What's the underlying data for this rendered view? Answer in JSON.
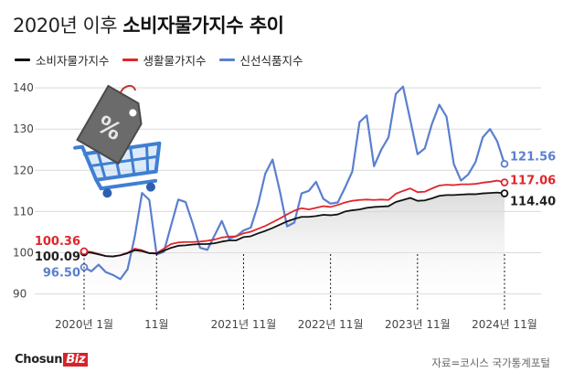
{
  "title": {
    "light": "2020년 이후",
    "bold": "소비자물가지수 추이"
  },
  "chart_data": {
    "type": "line",
    "x": [
      "2020-01",
      "2020-02",
      "2020-03",
      "2020-04",
      "2020-05",
      "2020-06",
      "2020-07",
      "2020-08",
      "2020-09",
      "2020-10",
      "2020-11",
      "2020-12",
      "2021-01",
      "2021-02",
      "2021-03",
      "2021-04",
      "2021-05",
      "2021-06",
      "2021-07",
      "2021-08",
      "2021-09",
      "2021-10",
      "2021-11",
      "2021-12",
      "2022-01",
      "2022-02",
      "2022-03",
      "2022-04",
      "2022-05",
      "2022-06",
      "2022-07",
      "2022-08",
      "2022-09",
      "2022-10",
      "2022-11",
      "2022-12",
      "2023-01",
      "2023-02",
      "2023-03",
      "2023-04",
      "2023-05",
      "2023-06",
      "2023-07",
      "2023-08",
      "2023-09",
      "2023-10",
      "2023-11",
      "2023-12",
      "2024-01",
      "2024-02",
      "2024-03",
      "2024-04",
      "2024-05",
      "2024-06",
      "2024-07",
      "2024-08",
      "2024-09",
      "2024-10",
      "2024-11"
    ],
    "x_ticks": [
      "2020년 1월",
      "11월",
      "2021년 11월",
      "2022년 11월",
      "2023년 11월",
      "2024년 11월"
    ],
    "x_tick_dates": [
      "2020-01",
      "2020-11",
      "2021-11",
      "2022-11",
      "2023-11",
      "2024-11"
    ],
    "y_ticks": [
      90,
      100,
      110,
      120,
      130,
      140
    ],
    "ylim": [
      85,
      142
    ],
    "grid": true,
    "legend_position": "top-left",
    "series": [
      {
        "name": "소비자물가지수",
        "color": "#111111",
        "start_label": "100.09",
        "end_label": "114.40",
        "values": [
          100.09,
          100.0,
          99.6,
          99.2,
          99.1,
          99.4,
          99.9,
          100.6,
          100.4,
          99.9,
          99.8,
          100.5,
          101.2,
          101.7,
          101.8,
          102.0,
          102.1,
          102.1,
          102.3,
          102.7,
          103.0,
          103.0,
          103.8,
          104.0,
          104.7,
          105.3,
          106.0,
          106.8,
          107.6,
          108.2,
          108.7,
          108.7,
          108.9,
          109.2,
          109.1,
          109.3,
          110.0,
          110.3,
          110.5,
          110.9,
          111.1,
          111.2,
          111.3,
          112.3,
          112.8,
          113.3,
          112.6,
          112.7,
          113.2,
          113.8,
          114.0,
          114.0,
          114.1,
          114.2,
          114.2,
          114.4,
          114.5,
          114.6,
          114.4
        ]
      },
      {
        "name": "생활물가지수",
        "color": "#e0262b",
        "start_label": "100.36",
        "end_label": "117.06",
        "values": [
          100.36,
          100.2,
          99.7,
          99.2,
          99.1,
          99.4,
          100.0,
          101.0,
          100.6,
          99.9,
          99.9,
          101.0,
          102.1,
          102.5,
          102.6,
          102.6,
          102.7,
          102.9,
          103.2,
          103.7,
          103.9,
          104.0,
          104.7,
          105.1,
          105.8,
          106.5,
          107.4,
          108.3,
          109.3,
          110.2,
          110.8,
          110.5,
          110.9,
          111.3,
          111.1,
          111.6,
          112.2,
          112.6,
          112.8,
          112.9,
          112.8,
          112.9,
          112.8,
          114.3,
          115.0,
          115.6,
          114.7,
          114.8,
          115.6,
          116.3,
          116.5,
          116.4,
          116.6,
          116.6,
          116.7,
          117.0,
          117.2,
          117.5,
          117.06
        ]
      },
      {
        "name": "신선식품지수",
        "color": "#5a7fd0",
        "start_label": "96.50",
        "end_label": "121.56",
        "values": [
          96.5,
          95.5,
          97.1,
          95.3,
          94.6,
          93.6,
          96.0,
          104.0,
          114.5,
          112.8,
          99.6,
          100.2,
          106.6,
          112.9,
          112.3,
          107.0,
          101.2,
          100.7,
          104.2,
          107.7,
          103.4,
          104.0,
          105.4,
          106.1,
          111.7,
          119.2,
          122.6,
          115.0,
          106.4,
          107.3,
          114.4,
          115.0,
          117.2,
          113.1,
          111.9,
          112.2,
          115.8,
          119.7,
          131.7,
          133.3,
          121.0,
          125.0,
          128.0,
          138.5,
          140.3,
          132.2,
          123.9,
          125.3,
          131.3,
          135.9,
          133.0,
          121.56,
          117.5,
          119.0,
          122.0,
          128.0,
          130.0,
          127.0,
          121.56
        ]
      }
    ]
  },
  "source": "자료=코시스 국가통계포털",
  "brand": {
    "main": "Chosun",
    "accent": "Biz"
  },
  "icon": "shopping-cart-with-percent-tag-icon"
}
